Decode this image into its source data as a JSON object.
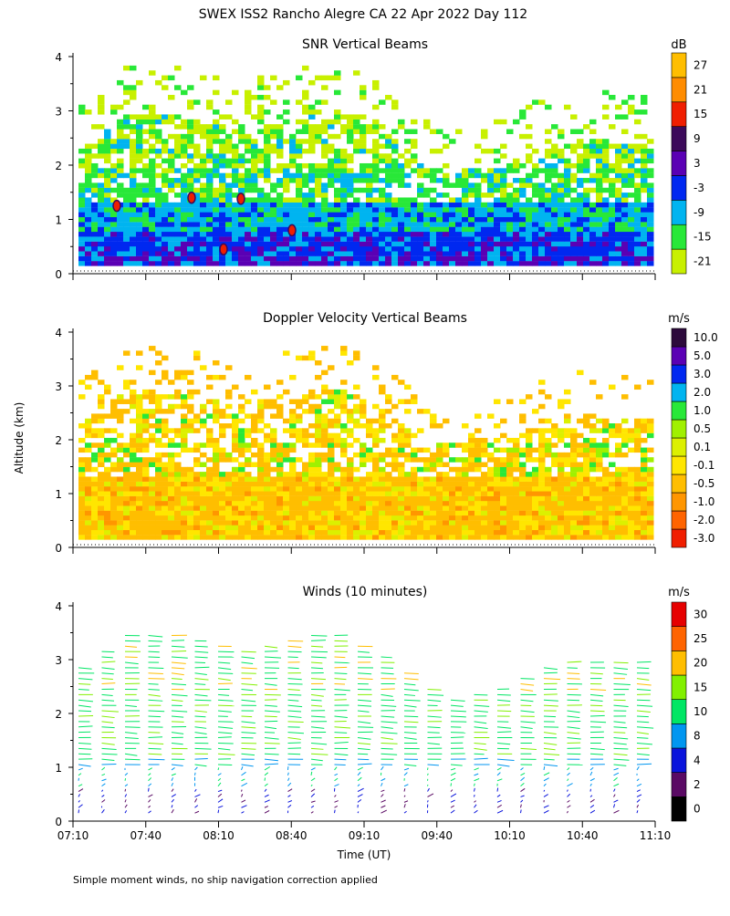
{
  "figure": {
    "title": "SWEX ISS2 Rancho Alegre CA  22 Apr 2022 Day 112",
    "y_axis_label": "Altitude (km)",
    "x_axis_label": "Time (UT)",
    "footnote": "Simple moment winds, no ship navigation correction applied"
  },
  "chart_data": [
    {
      "type": "heatmap",
      "title": "SNR Vertical Beams",
      "ylim": [
        0,
        4
      ],
      "yticks": [
        "0",
        "1",
        "2",
        "3",
        "4"
      ],
      "colorbar": {
        "unit": "dB",
        "labels": [
          "-21",
          "-15",
          "-9",
          "-3",
          "3",
          "9",
          "15",
          "21",
          "27"
        ],
        "colors": [
          "#c8f000",
          "#28e838",
          "#00b4f0",
          "#0028f0",
          "#5a00b4",
          "#3c0a5a",
          "#f01e00",
          "#ff8c00",
          "#ffbe00"
        ]
      }
    },
    {
      "type": "heatmap",
      "title": "Doppler Velocity Vertical Beams",
      "ylim": [
        0,
        4
      ],
      "yticks": [
        "0",
        "1",
        "2",
        "3",
        "4"
      ],
      "colorbar": {
        "unit": "m/s",
        "labels": [
          "-3.0",
          "-2.0",
          "-1.0",
          "-0.5",
          "-0.1",
          "0.1",
          "0.5",
          "1.0",
          "2.0",
          "3.0",
          "5.0",
          "10.0"
        ],
        "colors": [
          "#f01e00",
          "#ff6400",
          "#ff9600",
          "#ffbe00",
          "#ffe600",
          "#dcf000",
          "#a0f000",
          "#28e838",
          "#00b4f0",
          "#0028f0",
          "#5a00b4",
          "#2d0a3c"
        ]
      }
    },
    {
      "type": "wind_barbs",
      "title": "Winds (10 minutes)",
      "ylim": [
        0,
        4
      ],
      "yticks": [
        "0",
        "1",
        "2",
        "3",
        "4"
      ],
      "xticks": [
        "07:10",
        "07:40",
        "08:10",
        "08:40",
        "09:10",
        "09:40",
        "10:10",
        "10:40",
        "11:10"
      ],
      "colorbar": {
        "unit": "m/s",
        "labels": [
          "0",
          "2",
          "4",
          "8",
          "10",
          "15",
          "20",
          "25",
          "30"
        ],
        "colors": [
          "#000000",
          "#5a0a64",
          "#0a14dc",
          "#0096f0",
          "#00e664",
          "#82f000",
          "#ffbe00",
          "#ff6400",
          "#e60000"
        ]
      }
    }
  ]
}
